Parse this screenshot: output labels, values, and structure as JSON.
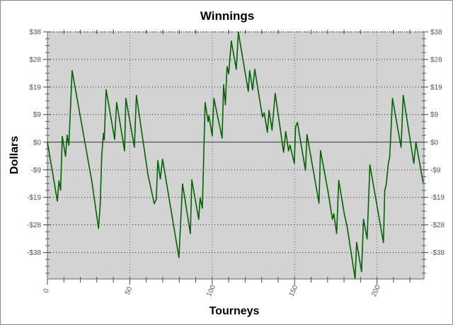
{
  "chart_data": {
    "type": "line",
    "title": "Winnings",
    "xlabel": "Tourneys",
    "ylabel": "Dollars",
    "xlim": [
      0,
      228.5
    ],
    "ylim": [
      -46.5,
      37.5
    ],
    "x_ticks": [
      0,
      50,
      100,
      150,
      200
    ],
    "x_tick_labels": [
      "0",
      "50",
      "100",
      "150",
      "200"
    ],
    "y_ticks": [
      37.5,
      28.1,
      18.75,
      9.4,
      0,
      -9.4,
      -18.75,
      -28.1,
      -37.5
    ],
    "y_tick_labels": [
      "$38",
      "$28",
      "$19",
      "$9",
      "$0",
      "-$9",
      "-$19",
      "-$28",
      "-$38"
    ],
    "grid": true,
    "plot_background": "#d3d3d3",
    "line_color": "#006400",
    "series": [
      {
        "points": [
          [
            0,
            0
          ],
          [
            6,
            -20
          ],
          [
            7,
            -13.2
          ],
          [
            8,
            -16.3
          ],
          [
            9,
            1.9
          ],
          [
            11,
            -4.8
          ],
          [
            12,
            2.4
          ],
          [
            13,
            -1
          ],
          [
            15,
            24.3
          ],
          [
            27,
            -13.5
          ],
          [
            31,
            -29.3
          ],
          [
            32,
            -21.6
          ],
          [
            33,
            -4.3
          ],
          [
            34,
            3
          ],
          [
            34.5,
            0.8
          ],
          [
            35.6,
            17.8
          ],
          [
            40.8,
            1
          ],
          [
            42,
            13.5
          ],
          [
            46.8,
            -2.9
          ],
          [
            47.6,
            14.9
          ],
          [
            52.8,
            -1.7
          ],
          [
            54,
            15.9
          ],
          [
            61,
            -11
          ],
          [
            64.8,
            -20.9
          ],
          [
            66,
            -19.5
          ],
          [
            67,
            -6.3
          ],
          [
            68.5,
            -12.5
          ],
          [
            69.9,
            -5.8
          ],
          [
            79.8,
            -39.2
          ],
          [
            82,
            -14.2
          ],
          [
            86.7,
            -31
          ],
          [
            87.6,
            -12.8
          ],
          [
            91.8,
            -26.2
          ],
          [
            92.7,
            -19
          ],
          [
            94,
            -22.4
          ],
          [
            95.7,
            13.5
          ],
          [
            97.5,
            7
          ],
          [
            98,
            9
          ],
          [
            100,
            2.2
          ],
          [
            101,
            14.9
          ],
          [
            106,
            1.4
          ],
          [
            106.9,
            19.5
          ],
          [
            108,
            12.7
          ],
          [
            109,
            25.7
          ],
          [
            110,
            23.3
          ],
          [
            111.6,
            34.4
          ],
          [
            114.6,
            24.8
          ],
          [
            115.9,
            37.3
          ],
          [
            121.9,
            17.3
          ],
          [
            122.7,
            24.3
          ],
          [
            124.5,
            17.8
          ],
          [
            125.8,
            24.8
          ],
          [
            130.5,
            8.6
          ],
          [
            131.5,
            10
          ],
          [
            133.5,
            3.4
          ],
          [
            134.5,
            10.8
          ],
          [
            136.3,
            4.1
          ],
          [
            138.2,
            16.6
          ],
          [
            143.3,
            -3.4
          ],
          [
            144.6,
            3.6
          ],
          [
            146.3,
            -2.9
          ],
          [
            147.2,
            -1
          ],
          [
            149.8,
            -7.2
          ],
          [
            150.6,
            5.3
          ],
          [
            151.7,
            6.7
          ],
          [
            156.6,
            -9.6
          ],
          [
            157.5,
            2.6
          ],
          [
            160.5,
            -7
          ],
          [
            164.8,
            -20.7
          ],
          [
            165.7,
            -2.9
          ],
          [
            170.3,
            -16.8
          ],
          [
            172.9,
            -26.2
          ],
          [
            173.8,
            -24.3
          ],
          [
            175.5,
            -31
          ],
          [
            176.8,
            -13
          ],
          [
            180.2,
            -24.5
          ],
          [
            181.9,
            -28.8
          ],
          [
            186.7,
            -46.4
          ],
          [
            187.6,
            -34.1
          ],
          [
            190.6,
            -44
          ],
          [
            191.8,
            -26.2
          ],
          [
            194,
            -32.9
          ],
          [
            195.7,
            -7.7
          ],
          [
            203.9,
            -34.1
          ],
          [
            204.7,
            -16.3
          ],
          [
            205.5,
            -14.7
          ],
          [
            206.9,
            -7.2
          ],
          [
            207.7,
            -5
          ],
          [
            209.4,
            14.9
          ],
          [
            214.6,
            -1.7
          ],
          [
            215.9,
            15.9
          ],
          [
            222.3,
            -7.2
          ],
          [
            223.6,
            0
          ],
          [
            227.9,
            -13.5
          ]
        ]
      }
    ]
  }
}
